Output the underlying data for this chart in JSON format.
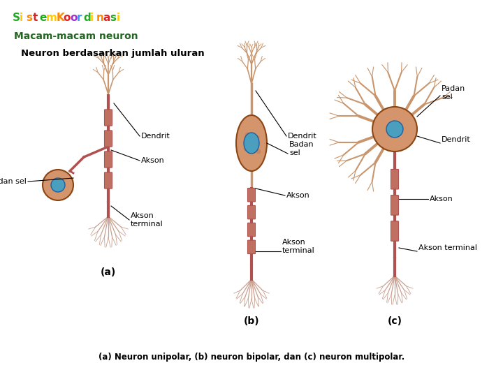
{
  "bg_color": "#ffffff",
  "fig_width": 7.2,
  "fig_height": 5.4,
  "dpi": 100,
  "title_top": "Sistem Koordinasi",
  "title_top_letter_colors": [
    "#22aa22",
    "#ffcc00",
    "#ff8800",
    "#dd2222",
    "#22aa22",
    "#ffcc00",
    "#ff8800",
    "#dd2222",
    "#9933cc",
    "#3399ff",
    "#22aa22",
    "#ffcc00",
    "#ff8800",
    "#dd2222",
    "#22aa22",
    "#ffcc00",
    "#ff8800"
  ],
  "title_main": "Macam-macam neuron",
  "title_main_color": "#226622",
  "subtitle": "Neuron berdasarkan jumlah uluran",
  "subtitle_color": "#000000",
  "caption": "(a) Neuron unipolar, (b) neuron bipolar, dan (c) neuron multipolar.",
  "caption_color": "#000000",
  "dendrite_color": "#c8956c",
  "cell_color": "#d4956c",
  "nucleus_color": "#4a9fbf",
  "nucleus_edge": "#2060a0",
  "axon_color": "#b05050",
  "myelin_color": "#c07060",
  "terminal_color": "#c8a090",
  "cell_edge": "#8B4513",
  "label_color": "#000000",
  "line_color": "#000000"
}
